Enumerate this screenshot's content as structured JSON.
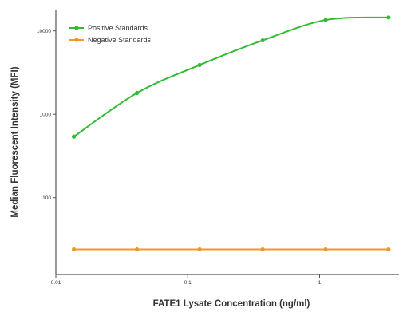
{
  "chart_data": {
    "type": "line",
    "xlabel": "FATE1 Lysate Concentration (ng/ml)",
    "ylabel": "Median Fluorescent Intensity (MFI)",
    "x_scale": "log",
    "y_scale": "log",
    "xlim": [
      0.01,
      4
    ],
    "ylim": [
      12,
      18000
    ],
    "x_ticks": [
      {
        "value": 0.01,
        "label": "0.01"
      },
      {
        "value": 0.1,
        "label": "0.1"
      },
      {
        "value": 1,
        "label": "1"
      }
    ],
    "y_ticks": [
      {
        "value": 100,
        "label": "100"
      },
      {
        "value": 1000,
        "label": "1000"
      },
      {
        "value": 10000,
        "label": "10000"
      }
    ],
    "grid": false,
    "legend_position": "top-left",
    "series": [
      {
        "name": "Positive Standards",
        "color": "#33bb33",
        "marker": "circle",
        "x": [
          0.0137,
          0.0412,
          0.123,
          0.37,
          1.11,
          3.33
        ],
        "y": [
          540,
          1800,
          3900,
          7700,
          13500,
          14500
        ]
      },
      {
        "name": "Negative Standards",
        "color": "#f0962a",
        "marker": "circle",
        "x": [
          0.0137,
          0.0412,
          0.123,
          0.37,
          1.11,
          3.33
        ],
        "y": [
          24,
          24,
          24,
          24,
          24,
          24
        ]
      }
    ]
  }
}
